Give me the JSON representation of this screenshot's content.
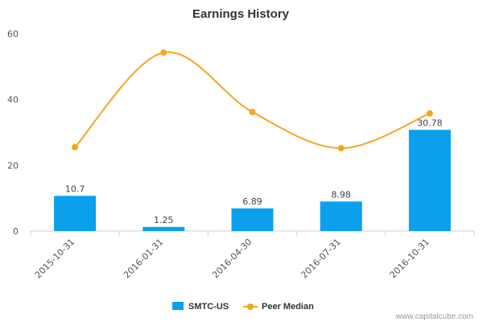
{
  "chart_data": {
    "type": "bar",
    "title": "Earnings History",
    "xlabel": "",
    "ylabel": "",
    "categories": [
      "2015-10-31",
      "2016-01-31",
      "2016-04-30",
      "2016-07-31",
      "2016-10-31"
    ],
    "ylim": [
      0,
      60
    ],
    "yticks": [
      0,
      20,
      40,
      60
    ],
    "series": [
      {
        "name": "SMTC-US",
        "type": "bar",
        "color": "#0aa0ec",
        "values": [
          10.7,
          1.25,
          6.89,
          8.98,
          30.78
        ],
        "labels": [
          "10.7",
          "1.25",
          "6.89",
          "8.98",
          "30.78"
        ]
      },
      {
        "name": "Peer Median",
        "type": "line",
        "color": "#f5a623",
        "values": [
          25.5,
          54.3,
          36.2,
          25.2,
          35.8
        ]
      }
    ],
    "legend_position": "bottom-center",
    "grid": false
  },
  "credit": "www.capitalcube.com"
}
